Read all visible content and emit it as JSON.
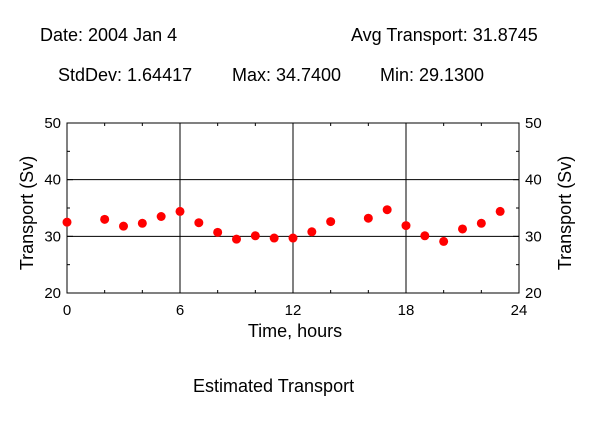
{
  "header": {
    "date_text": "Date: 2004 Jan 4",
    "avg_text": "Avg Transport: 31.8745",
    "stddev_text": "StdDev: 1.64417",
    "max_text": "Max: 34.7400",
    "min_text": "Min: 29.1300"
  },
  "footer": {
    "caption": "Estimated Transport"
  },
  "chart_data": {
    "type": "scatter",
    "title": "",
    "xlabel": "Time, hours",
    "ylabel": "Transport (Sv)",
    "ylabel_right": "Transport (Sv)",
    "xlim": [
      0,
      24
    ],
    "ylim": [
      20,
      50
    ],
    "xticks": [
      0,
      6,
      12,
      18,
      24
    ],
    "yticks": [
      20,
      30,
      40,
      50
    ],
    "grid": true,
    "marker_color": "#ff0000",
    "series": [
      {
        "x": [
          0,
          2,
          3,
          4,
          5,
          6,
          7,
          8,
          9,
          10,
          11,
          12,
          13,
          14,
          16,
          17,
          18,
          19,
          20,
          21,
          22,
          23
        ],
        "y": [
          32.5,
          33.0,
          31.8,
          32.3,
          33.5,
          34.4,
          32.4,
          30.7,
          29.5,
          30.1,
          29.7,
          29.7,
          30.8,
          32.6,
          33.2,
          34.7,
          31.9,
          30.1,
          29.1,
          31.3,
          32.3,
          34.4
        ]
      }
    ]
  }
}
